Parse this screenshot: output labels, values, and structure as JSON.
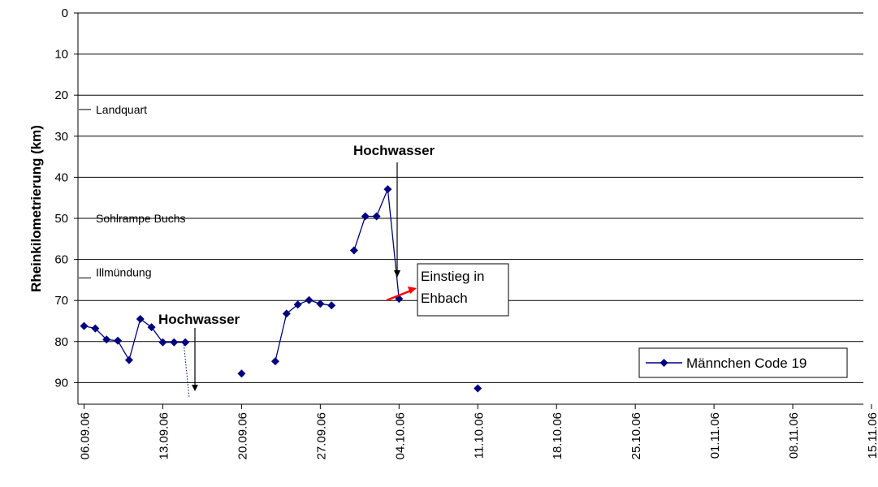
{
  "chart_data": {
    "type": "line",
    "title": "",
    "xlabel": "",
    "ylabel": "Rheinkilometrierung (km)",
    "ylim": [
      0,
      95
    ],
    "y_inverted": true,
    "y_ticks": [
      0,
      10,
      20,
      30,
      40,
      50,
      60,
      70,
      80,
      90
    ],
    "x_ticks": [
      "06.09.06",
      "13.09.06",
      "20.09.06",
      "27.09.06",
      "04.10.06",
      "11.10.06",
      "18.10.06",
      "25.10.06",
      "01.11.06",
      "08.11.06",
      "15.11.06"
    ],
    "grid": "horizontal",
    "legend_position": "bottom-right",
    "line_color": "#000080",
    "series": [
      {
        "name": "Männchen Code 19",
        "segments": [
          [
            {
              "x": "06.09.06",
              "y": 76.2
            },
            {
              "x": "07.09.06",
              "y": 76.8
            },
            {
              "x": "08.09.06",
              "y": 79.5
            },
            {
              "x": "09.09.06",
              "y": 79.8
            },
            {
              "x": "10.09.06",
              "y": 84.5
            },
            {
              "x": "11.09.06",
              "y": 74.5
            },
            {
              "x": "12.09.06",
              "y": 76.5
            },
            {
              "x": "13.09.06",
              "y": 80.2
            },
            {
              "x": "14.09.06",
              "y": 80.2
            },
            {
              "x": "15.09.06",
              "y": 80.2
            }
          ],
          [
            {
              "x": "20.09.06",
              "y": 87.8
            }
          ],
          [
            {
              "x": "23.09.06",
              "y": 84.8
            },
            {
              "x": "24.09.06",
              "y": 73.2
            },
            {
              "x": "25.09.06",
              "y": 71.0
            },
            {
              "x": "26.09.06",
              "y": 69.9
            },
            {
              "x": "27.09.06",
              "y": 70.8
            },
            {
              "x": "28.09.06",
              "y": 71.2
            }
          ],
          [
            {
              "x": "30.09.06",
              "y": 57.8
            },
            {
              "x": "01.10.06",
              "y": 49.5
            },
            {
              "x": "02.10.06",
              "y": 49.5
            },
            {
              "x": "03.10.06",
              "y": 42.9
            },
            {
              "x": "04.10.06",
              "y": 69.6
            }
          ],
          [
            {
              "x": "11.10.06",
              "y": 91.4
            }
          ]
        ]
      }
    ],
    "reference_lines": [
      {
        "label": "Landquart",
        "y": 23.5
      },
      {
        "label": "Sohlrampe Buchs",
        "y": 50
      },
      {
        "label": "Illmündung",
        "y": 64.5
      }
    ],
    "annotations": {
      "hochwasser_1": "Hochwasser",
      "hochwasser_2": "Hochwasser",
      "einstieg_line1": "Einstieg in",
      "einstieg_line2": "Ehbach"
    }
  }
}
